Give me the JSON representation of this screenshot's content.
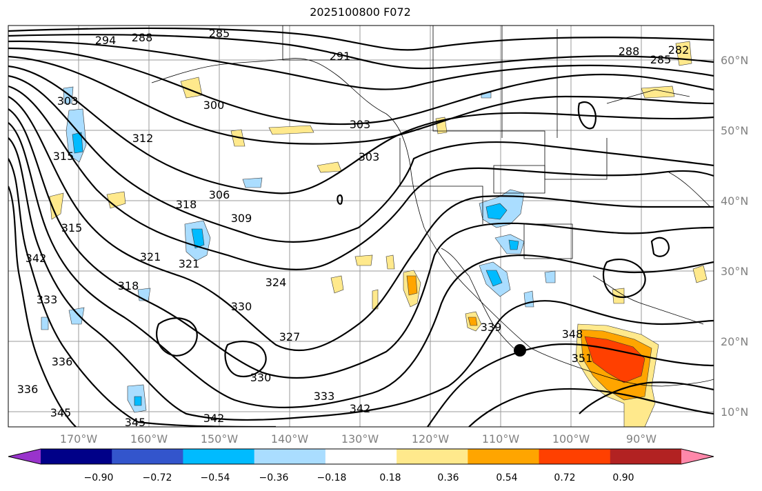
{
  "title": "2025100800 F072",
  "lat_labels": [
    "60°N",
    "50°N",
    "40°N",
    "30°N",
    "20°N",
    "10°N"
  ],
  "lon_labels": [
    "170°W",
    "160°W",
    "150°W",
    "140°W",
    "130°W",
    "120°W",
    "110°W",
    "100°W",
    "90°W"
  ],
  "colorbar": {
    "colors": [
      "#9933cc",
      "#000088",
      "#3355cc",
      "#00bbff",
      "#aaddff",
      "#ffffff",
      "#ffe98c",
      "#ffa500",
      "#ff4000",
      "#b22222",
      "#ff88aa"
    ],
    "tick_labels": [
      "−0.90",
      "−0.72",
      "−0.54",
      "−0.36",
      "−0.18",
      "0.18",
      "0.36",
      "0.54",
      "0.72",
      "0.90"
    ]
  },
  "contour_labels": [
    "285",
    "288",
    "291",
    "294",
    "300",
    "303",
    "303",
    "303",
    "306",
    "309",
    "312",
    "315",
    "315",
    "318",
    "318",
    "321",
    "321",
    "324",
    "327",
    "330",
    "330",
    "333",
    "333",
    "336",
    "336",
    "339",
    "342",
    "342",
    "342",
    "345",
    "345",
    "348",
    "351",
    "282",
    "285",
    "288"
  ],
  "marker": "black-dot"
}
